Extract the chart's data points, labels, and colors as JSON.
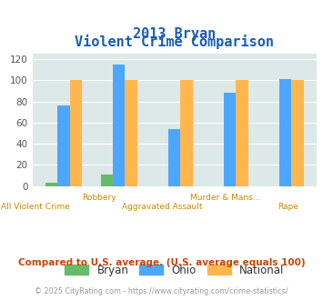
{
  "title_line1": "2013 Bryan",
  "title_line2": "Violent Crime Comparison",
  "bryan": [
    3,
    11,
    0,
    0,
    0
  ],
  "ohio": [
    76,
    115,
    54,
    88,
    101
  ],
  "national": [
    100,
    100,
    100,
    100,
    100
  ],
  "label_top": [
    "",
    "Robbery",
    "",
    "Murder & Mans...",
    ""
  ],
  "label_bottom": [
    "All Violent Crime",
    "",
    "Aggravated Assault",
    "",
    "Rape"
  ],
  "ylim": [
    0,
    125
  ],
  "yticks": [
    0,
    20,
    40,
    60,
    80,
    100,
    120
  ],
  "bryan_color": "#66bb6a",
  "ohio_color": "#4da6ff",
  "national_color": "#ffb74d",
  "bg_color": "#dde8e8",
  "title_color": "#1a5eb8",
  "label_color": "#cc8800",
  "footer_color": "#999999",
  "comparison_text": "Compared to U.S. average. (U.S. average equals 100)",
  "comparison_color": "#cc4400",
  "footer_text": "© 2025 CityRating.com - https://www.cityrating.com/crime-statistics/",
  "bar_width": 0.22
}
